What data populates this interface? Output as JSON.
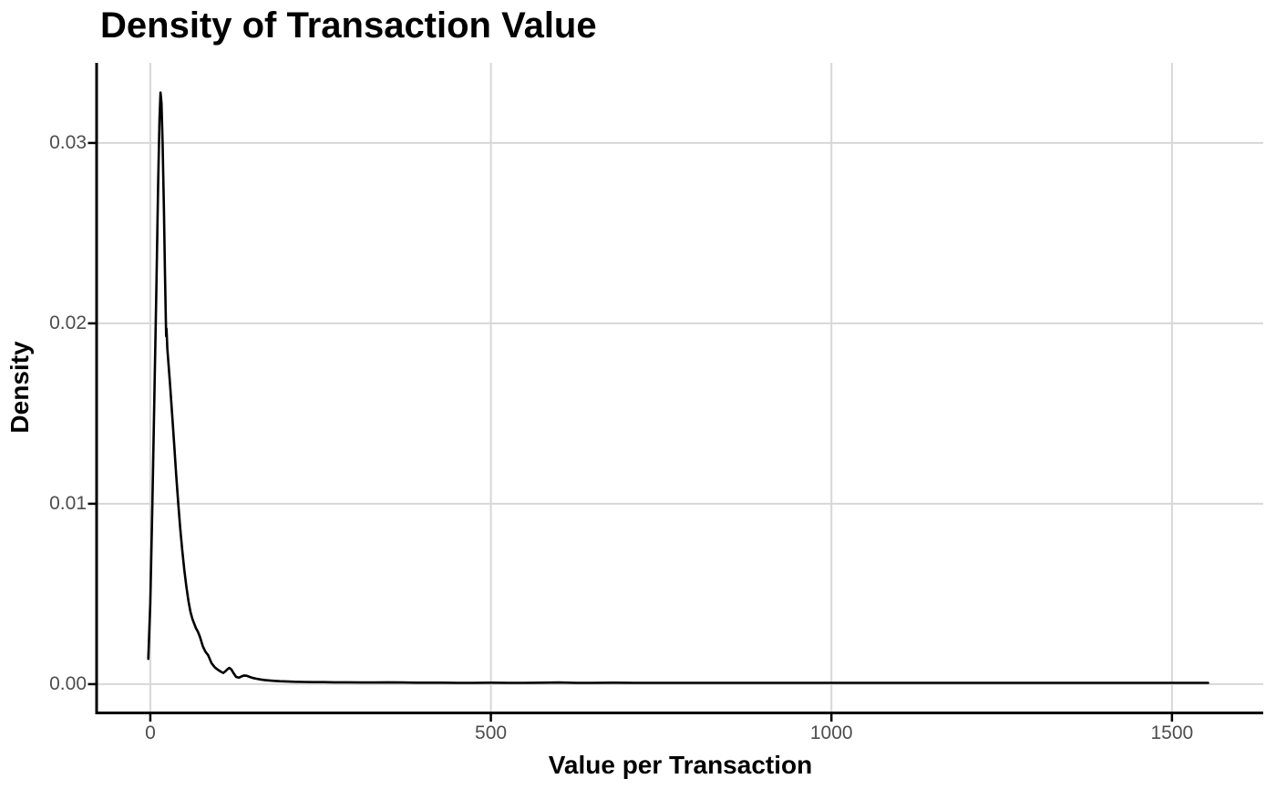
{
  "chart_data": {
    "type": "line",
    "subtype": "density-curve",
    "title": "Density of Transaction Value",
    "xlabel": "Value per Transaction",
    "ylabel": "Density",
    "legend": "none",
    "grid": "major-only",
    "background": "#FFFFFF",
    "xlim": [
      -77.5,
      1634
    ],
    "ylim": [
      -0.00152,
      0.03444
    ],
    "x_ticks": {
      "values": [
        0,
        500,
        1000,
        1500
      ],
      "labels": [
        "0",
        "500",
        "1000",
        "1500"
      ]
    },
    "y_ticks": {
      "values": [
        0,
        0.01,
        0.02,
        0.03
      ],
      "labels": [
        "0.00",
        "0.01",
        "0.02",
        "0.03"
      ]
    },
    "colors": {
      "line": "#000000",
      "grid": "#D7D7D7",
      "axis": "#000000",
      "tick_mark": "#000000",
      "tick_label": "#4D4D4D",
      "title": "#000000"
    },
    "series": [
      {
        "name": "density",
        "x": [
          -3,
          0,
          3,
          6,
          9,
          11.5,
          13.5,
          15,
          16.5,
          18,
          20,
          21.5,
          22.6,
          23.2,
          23.8,
          25,
          27,
          29,
          32,
          35,
          38,
          41,
          44,
          47,
          50,
          53,
          56,
          59,
          62,
          65,
          67,
          70,
          73,
          77,
          81,
          85,
          90,
          95,
          100,
          104,
          107,
          110,
          113,
          116,
          119,
          122,
          126,
          130,
          134,
          138,
          142,
          146,
          151,
          156,
          162,
          168,
          175,
          182,
          190,
          200,
          212,
          225,
          240,
          255,
          270,
          290,
          310,
          330,
          350,
          370,
          390,
          410,
          430,
          450,
          475,
          500,
          525,
          550,
          575,
          600,
          625,
          650,
          680,
          710,
          740,
          770,
          800,
          840,
          880,
          920,
          960,
          1000,
          1050,
          1100,
          1150,
          1200,
          1250,
          1300,
          1350,
          1400,
          1450,
          1500,
          1530,
          1553
        ],
        "y": [
          0.0014,
          0.0045,
          0.01,
          0.016,
          0.022,
          0.0277,
          0.0313,
          0.0328,
          0.0322,
          0.03,
          0.0262,
          0.0228,
          0.0206,
          0.0193,
          0.0197,
          0.0186,
          0.0176,
          0.0166,
          0.015,
          0.0133,
          0.0116,
          0.01,
          0.0086,
          0.0074,
          0.0063,
          0.0054,
          0.0046,
          0.004,
          0.0036,
          0.0033,
          0.0031,
          0.0029,
          0.0026,
          0.0021,
          0.0018,
          0.0016,
          0.00115,
          0.00092,
          0.00078,
          0.00068,
          0.00062,
          0.0007,
          0.00082,
          0.0009,
          0.00082,
          0.00062,
          0.0004,
          0.00036,
          0.00043,
          0.00048,
          0.00046,
          0.0004,
          0.00034,
          0.0003,
          0.00026,
          0.00023,
          0.0002,
          0.00018,
          0.00016,
          0.00015,
          0.00013,
          0.00012,
          0.00011,
          0.00011,
          0.0001,
          0.0001,
          9e-05,
          9e-05,
          0.0001,
          9e-05,
          8e-05,
          8e-05,
          8e-05,
          7e-05,
          7e-05,
          8e-05,
          7e-05,
          7e-05,
          8e-05,
          9e-05,
          7e-05,
          7e-05,
          8e-05,
          7e-05,
          7e-05,
          7e-05,
          7e-05,
          7e-05,
          7e-05,
          7e-05,
          7e-05,
          7e-05,
          7e-05,
          7e-05,
          7e-05,
          7e-05,
          7e-05,
          7e-05,
          7e-05,
          7e-05,
          7e-05,
          7e-05,
          7e-05,
          7e-05
        ]
      }
    ],
    "peak": {
      "x": 15,
      "y": 0.0328
    }
  }
}
